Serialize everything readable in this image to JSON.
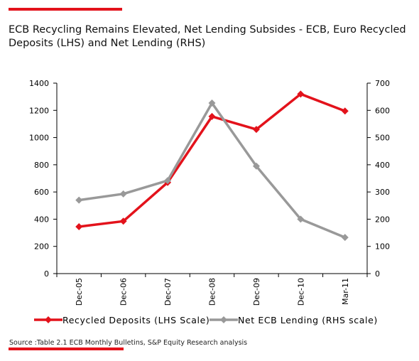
{
  "title": "ECB Recycling Remains Elevated, Net Lending Subsides - ECB, Euro Recycled Deposits (LHS) and Net Lending (RHS)",
  "source": "Source :Table 2.1  ECB Monthly Bulletins, S&P Equity Research analysis",
  "colors": {
    "accent": "#e3121b",
    "series1": "#e3121b",
    "series2": "#999999"
  },
  "chart_data": {
    "type": "line",
    "title": "ECB Recycling Remains Elevated, Net Lending Subsides - ECB, Euro Recycled Deposits (LHS) and Net Lending (RHS)",
    "categories": [
      "Dec-05",
      "Dec-06",
      "Dec-07",
      "Dec-08",
      "Dec-09",
      "Dec-10",
      "Mar-11"
    ],
    "series": [
      {
        "name": "Recycled Deposits (LHS Scale)",
        "axis": "left",
        "color": "#e3121b",
        "values": [
          345,
          385,
          670,
          1155,
          1060,
          1320,
          1195
        ]
      },
      {
        "name": "Net ECB Lending (RHS scale)",
        "axis": "right",
        "color": "#999999",
        "values": [
          270,
          293,
          342,
          627,
          395,
          200,
          133
        ]
      }
    ],
    "y_left": {
      "ylim": [
        0,
        1400
      ],
      "ticks": [
        0,
        200,
        400,
        600,
        800,
        1000,
        1200,
        1400
      ]
    },
    "y_right": {
      "ylim": [
        0,
        700
      ],
      "ticks": [
        0,
        100,
        200,
        300,
        400,
        500,
        600,
        700
      ]
    },
    "grid": false,
    "legend": "bottom"
  }
}
